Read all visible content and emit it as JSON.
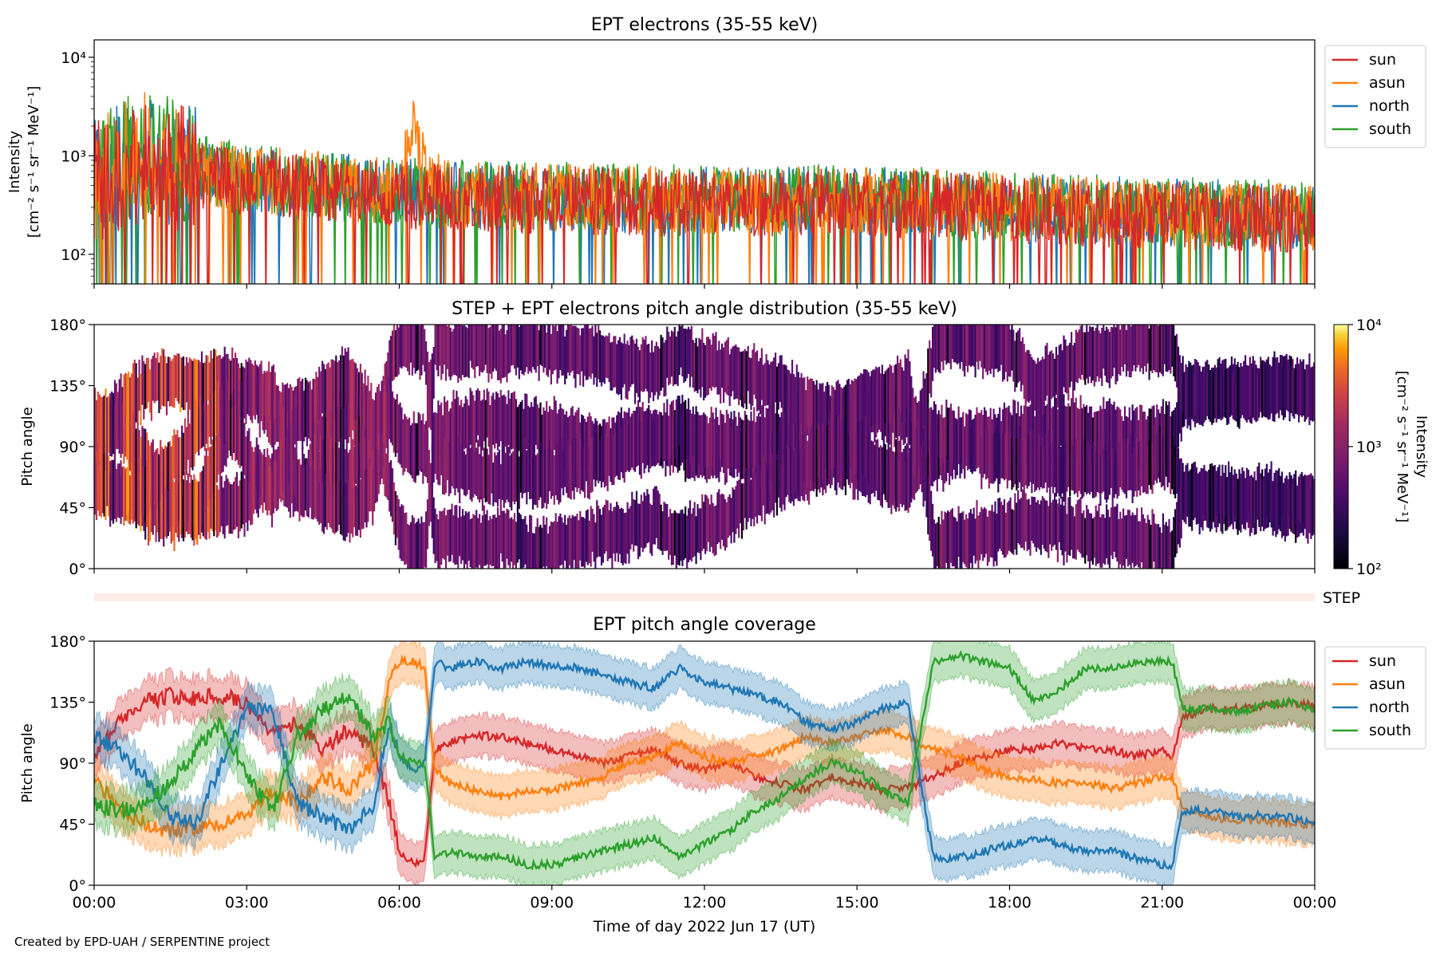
{
  "credit": "Created by EPD-UAH / SERPENTINE project",
  "x_axis": {
    "label": "Time of day 2022 Jun 17 (UT)",
    "range_hours": [
      0,
      24
    ],
    "ticks": [
      {
        "value": 0,
        "label": "00:00"
      },
      {
        "value": 3,
        "label": "03:00"
      },
      {
        "value": 6,
        "label": "06:00"
      },
      {
        "value": 9,
        "label": "09:00"
      },
      {
        "value": 12,
        "label": "12:00"
      },
      {
        "value": 15,
        "label": "15:00"
      },
      {
        "value": 18,
        "label": "18:00"
      },
      {
        "value": 21,
        "label": "21:00"
      },
      {
        "value": 24,
        "label": "00:00"
      }
    ]
  },
  "colors": {
    "sun": "#d62728",
    "asun": "#ff7f0e",
    "north": "#1f77b4",
    "south": "#2ca02c"
  },
  "chart_data": [
    {
      "type": "line",
      "title": "EPT electrons (35-55 keV)",
      "ylabel_line1": "Intensity",
      "ylabel_line2": "[cm⁻² s⁻¹ sr⁻¹ MeV⁻¹]",
      "yscale": "log",
      "ylim": [
        50,
        15000
      ],
      "yticks": [
        {
          "value": 100,
          "label": "10²"
        },
        {
          "value": 1000,
          "label": "10³"
        },
        {
          "value": 10000,
          "label": "10⁴"
        }
      ],
      "legend_position": "outside-right",
      "series": [
        {
          "name": "sun",
          "x": [
            0,
            0.5,
            1,
            1.5,
            2,
            3,
            4,
            5,
            6,
            7,
            8,
            9,
            10,
            11,
            12,
            13,
            14,
            15,
            16,
            17,
            18,
            19,
            20,
            21,
            22,
            23,
            24
          ],
          "y": [
            500,
            700,
            900,
            800,
            650,
            550,
            480,
            450,
            400,
            380,
            370,
            360,
            350,
            340,
            330,
            320,
            330,
            340,
            320,
            300,
            290,
            270,
            260,
            250,
            240,
            230,
            220
          ]
        },
        {
          "name": "asun",
          "x": [
            0,
            0.5,
            1,
            1.5,
            2,
            3,
            4,
            5,
            6,
            6.3,
            6.5,
            7,
            8,
            9,
            10,
            11,
            12,
            13,
            14,
            15,
            16,
            17,
            18,
            19,
            20,
            21,
            22,
            23,
            24
          ],
          "y": [
            600,
            800,
            1000,
            900,
            700,
            600,
            520,
            480,
            430,
            2000,
            600,
            400,
            390,
            380,
            370,
            360,
            350,
            340,
            350,
            360,
            340,
            320,
            300,
            290,
            280,
            270,
            250,
            240,
            230
          ]
        },
        {
          "name": "north",
          "x": [
            0,
            0.5,
            1,
            1.5,
            2,
            3,
            4,
            5,
            6,
            7,
            8,
            9,
            10,
            11,
            12,
            13,
            14,
            15,
            16,
            17,
            18,
            19,
            20,
            21,
            22,
            23,
            24
          ],
          "y": [
            550,
            750,
            950,
            850,
            700,
            580,
            500,
            470,
            420,
            400,
            390,
            380,
            370,
            360,
            350,
            340,
            350,
            360,
            330,
            310,
            300,
            290,
            280,
            270,
            260,
            250,
            240
          ]
        },
        {
          "name": "south",
          "x": [
            0,
            0.5,
            1,
            1.5,
            2,
            3,
            4,
            5,
            6,
            7,
            8,
            9,
            10,
            11,
            12,
            13,
            14,
            15,
            16,
            17,
            18,
            19,
            20,
            21,
            22,
            23,
            24
          ],
          "y": [
            600,
            850,
            1100,
            900,
            720,
            600,
            520,
            490,
            440,
            410,
            400,
            390,
            380,
            370,
            360,
            350,
            370,
            380,
            350,
            330,
            310,
            300,
            290,
            280,
            270,
            260,
            250
          ]
        }
      ]
    },
    {
      "type": "heatmap",
      "title": "STEP + EPT electrons pitch angle distribution (35-55 keV)",
      "ylabel": "Pitch angle",
      "ylim": [
        0,
        180
      ],
      "yticks": [
        {
          "value": 0,
          "label": "0°"
        },
        {
          "value": 45,
          "label": "45°"
        },
        {
          "value": 90,
          "label": "90°"
        },
        {
          "value": 135,
          "label": "135°"
        },
        {
          "value": 180,
          "label": "180°"
        }
      ],
      "colorbar": {
        "label_line1": "Intensity",
        "label_line2": "[cm⁻² s⁻¹ sr⁻¹ MeV⁻¹]",
        "scale": "log",
        "range": [
          100,
          10000
        ],
        "colormap": "inferno",
        "ticks": [
          {
            "value": 100,
            "label": "10²"
          },
          {
            "value": 1000,
            "label": "10³"
          },
          {
            "value": 10000,
            "label": "10⁴"
          }
        ]
      }
    },
    {
      "type": "bar",
      "title": "",
      "label": "STEP"
    },
    {
      "type": "line",
      "title": "EPT pitch angle coverage",
      "ylabel": "Pitch angle",
      "ylim": [
        0,
        180
      ],
      "yticks": [
        {
          "value": 0,
          "label": "0°"
        },
        {
          "value": 45,
          "label": "45°"
        },
        {
          "value": 90,
          "label": "90°"
        },
        {
          "value": 135,
          "label": "135°"
        },
        {
          "value": 180,
          "label": "180°"
        }
      ],
      "band_halfwidth_deg": 15,
      "legend_position": "outside-right",
      "series": [
        {
          "name": "sun",
          "x": [
            0,
            0.5,
            1,
            1.5,
            2,
            2.5,
            3,
            3.5,
            4,
            4.5,
            5,
            5.5,
            5.8,
            6,
            6.3,
            6.5,
            6.7,
            7,
            7.5,
            8,
            8.5,
            9,
            9.5,
            10,
            10.5,
            11,
            11.5,
            12,
            12.5,
            13,
            13.5,
            14,
            14.5,
            15,
            15.5,
            16,
            16.5,
            17,
            17.5,
            18,
            18.5,
            19,
            19.5,
            20,
            20.5,
            21,
            21.2,
            21.4,
            22,
            22.5,
            23,
            23.5,
            24
          ],
          "y": [
            95,
            120,
            135,
            140,
            138,
            140,
            135,
            110,
            120,
            100,
            115,
            100,
            60,
            25,
            15,
            20,
            100,
            105,
            110,
            110,
            105,
            100,
            95,
            90,
            95,
            100,
            90,
            85,
            90,
            80,
            75,
            70,
            80,
            75,
            70,
            72,
            80,
            90,
            95,
            100,
            100,
            105,
            100,
            100,
            95,
            100,
            95,
            125,
            130,
            130,
            132,
            135,
            132
          ]
        },
        {
          "name": "asun",
          "x": [
            0,
            0.5,
            1,
            1.5,
            2,
            2.5,
            3,
            3.5,
            4,
            4.5,
            5,
            5.5,
            5.8,
            6,
            6.3,
            6.5,
            6.7,
            7,
            7.5,
            8,
            8.5,
            9,
            9.5,
            10,
            10.5,
            11,
            11.5,
            12,
            12.5,
            13,
            13.5,
            14,
            14.5,
            15,
            15.5,
            16,
            16.5,
            17,
            17.5,
            18,
            18.5,
            19,
            19.5,
            20,
            20.5,
            21,
            21.2,
            21.4,
            22,
            22.5,
            23,
            23.5,
            24
          ],
          "y": [
            80,
            55,
            45,
            40,
            42,
            45,
            50,
            70,
            60,
            80,
            70,
            90,
            150,
            165,
            165,
            160,
            85,
            75,
            70,
            65,
            70,
            70,
            75,
            80,
            90,
            95,
            105,
            95,
            90,
            95,
            100,
            110,
            105,
            110,
            115,
            110,
            100,
            95,
            85,
            80,
            78,
            75,
            75,
            72,
            75,
            80,
            80,
            55,
            50,
            48,
            48,
            45,
            45
          ]
        },
        {
          "name": "north",
          "x": [
            0,
            0.5,
            1,
            1.5,
            2,
            2.5,
            3,
            3.5,
            4,
            4.5,
            5,
            5.5,
            5.8,
            6,
            6.3,
            6.5,
            6.7,
            7,
            7.5,
            8,
            8.5,
            9,
            9.5,
            10,
            10.5,
            11,
            11.5,
            12,
            12.5,
            13,
            13.5,
            14,
            14.5,
            15,
            15.5,
            16,
            16.5,
            17,
            17.5,
            18,
            18.5,
            19,
            19.5,
            20,
            20.5,
            21,
            21.2,
            21.4,
            22,
            22.5,
            23,
            23.5,
            24
          ],
          "y": [
            110,
            100,
            80,
            50,
            45,
            90,
            130,
            130,
            60,
            50,
            40,
            60,
            120,
            95,
            85,
            90,
            165,
            160,
            165,
            160,
            165,
            162,
            160,
            155,
            150,
            145,
            160,
            150,
            145,
            140,
            135,
            120,
            115,
            120,
            130,
            135,
            20,
            20,
            25,
            30,
            35,
            30,
            25,
            25,
            20,
            15,
            15,
            55,
            55,
            50,
            52,
            50,
            45
          ]
        },
        {
          "name": "south",
          "x": [
            0,
            0.5,
            1,
            1.5,
            2,
            2.5,
            3,
            3.5,
            4,
            4.5,
            5,
            5.5,
            5.8,
            6,
            6.3,
            6.5,
            6.7,
            7,
            7.5,
            8,
            8.5,
            9,
            9.5,
            10,
            10.5,
            11,
            11.5,
            12,
            12.5,
            13,
            13.5,
            14,
            14.5,
            15,
            15.5,
            16,
            16.5,
            17,
            17.5,
            18,
            18.5,
            19,
            19.5,
            20,
            20.5,
            21,
            21.2,
            21.4,
            22,
            22.5,
            23,
            23.5,
            24
          ],
          "y": [
            60,
            55,
            60,
            75,
            100,
            120,
            80,
            55,
            110,
            130,
            140,
            110,
            120,
            95,
            90,
            90,
            20,
            25,
            20,
            22,
            15,
            15,
            20,
            25,
            30,
            35,
            20,
            30,
            40,
            55,
            65,
            80,
            90,
            85,
            70,
            60,
            165,
            170,
            165,
            160,
            135,
            145,
            160,
            160,
            165,
            165,
            165,
            130,
            130,
            128,
            132,
            135,
            130
          ]
        }
      ]
    }
  ]
}
